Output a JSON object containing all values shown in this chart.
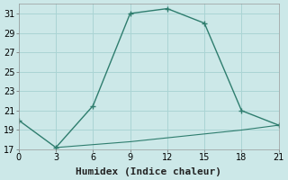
{
  "xlabel": "Humidex (Indice chaleur)",
  "line1_x": [
    0,
    3,
    6,
    9,
    12,
    15,
    18,
    21
  ],
  "line1_y": [
    20,
    17.2,
    21.5,
    31,
    31.5,
    30,
    21,
    19.5
  ],
  "line2_x": [
    3,
    6,
    9,
    12,
    15,
    18,
    21
  ],
  "line2_y": [
    17.2,
    17.5,
    17.8,
    18.2,
    18.6,
    19.0,
    19.5
  ],
  "line_color": "#2e7d6e",
  "bg_color": "#cce8e8",
  "grid_color": "#aad4d4",
  "xlim": [
    0,
    21
  ],
  "ylim": [
    17,
    32
  ],
  "xticks": [
    0,
    3,
    6,
    9,
    12,
    15,
    18,
    21
  ],
  "yticks": [
    17,
    19,
    21,
    23,
    25,
    27,
    29,
    31
  ],
  "tick_label_fontsize": 7,
  "xlabel_fontsize": 8
}
